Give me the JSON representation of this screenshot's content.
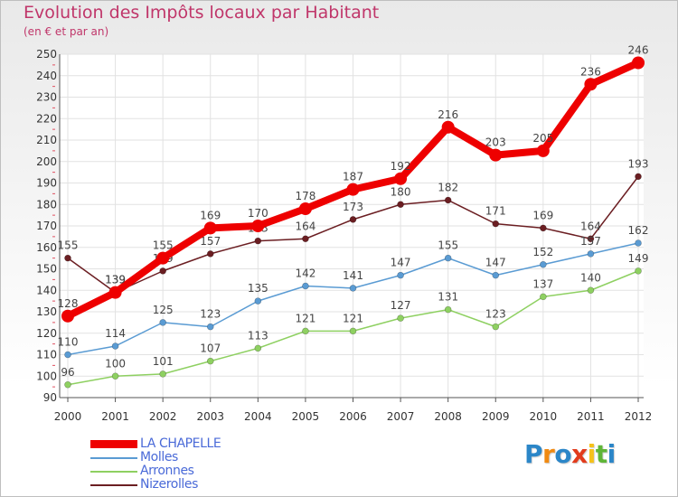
{
  "chart_data": {
    "type": "line",
    "title": "Evolution des Impôts locaux par Habitant",
    "subtitle": "(en € et par an)",
    "xlabel": "",
    "ylabel": "",
    "ylim": [
      90,
      250
    ],
    "ytick_step": 10,
    "x": [
      2000,
      2001,
      2002,
      2003,
      2004,
      2005,
      2006,
      2007,
      2008,
      2009,
      2010,
      2011,
      2012
    ],
    "series": [
      {
        "name": "Nizerolles",
        "color": "#6b1e22",
        "values": [
          155,
          139,
          149,
          157,
          163,
          164,
          173,
          180,
          182,
          171,
          169,
          164,
          193
        ]
      },
      {
        "name": "Arronnes",
        "color": "#8ed061",
        "values": [
          96,
          100,
          101,
          107,
          113,
          121,
          121,
          127,
          131,
          123,
          137,
          140,
          149
        ]
      },
      {
        "name": "Molles",
        "color": "#5a9bd3",
        "values": [
          110,
          114,
          125,
          123,
          135,
          142,
          141,
          147,
          155,
          147,
          152,
          157,
          162
        ]
      },
      {
        "name": "LA CHAPELLE",
        "color": "#ee0000",
        "values": [
          128,
          139,
          155,
          169,
          170,
          178,
          187,
          192,
          216,
          203,
          205,
          236,
          246
        ]
      }
    ],
    "legend": [
      "LA CHAPELLE",
      "Molles",
      "Arronnes",
      "Nizerolles"
    ],
    "legend_position": "bottom-left",
    "grid": true
  },
  "logo": {
    "letters": [
      "P",
      "r",
      "o",
      "x",
      "i",
      "t",
      "i"
    ],
    "colors": [
      "#2b86c8",
      "#f08a12",
      "#2b86c8",
      "#e23b1c",
      "#f6c21a",
      "#5fb537",
      "#2b86c8"
    ]
  }
}
